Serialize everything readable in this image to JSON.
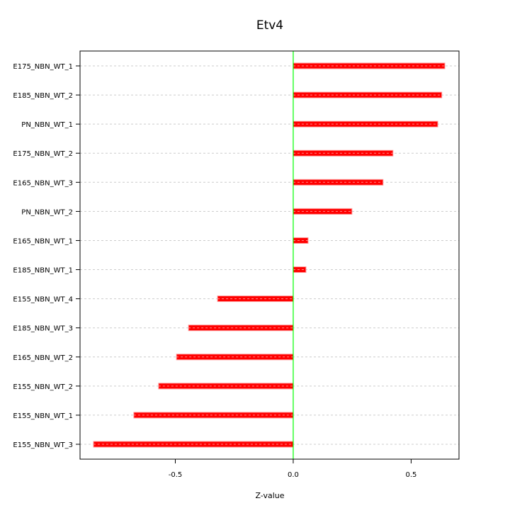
{
  "chart_data": {
    "type": "bar",
    "orientation": "horizontal",
    "title": "Etv4",
    "xlabel": "Z-value",
    "ylabel": "",
    "xlim": [
      -0.904,
      0.703
    ],
    "xticks": [
      -0.5,
      0.0,
      0.5
    ],
    "xtick_labels": [
      "-0.5",
      "0.0",
      "0.5"
    ],
    "grid": "horizontal dashed",
    "reference_line": 0,
    "colors": {
      "bar": "#ff0000",
      "zero_line": "#00ff00",
      "grid": "#cccccc"
    },
    "categories": [
      "E175_NBN_WT_1",
      "E185_NBN_WT_2",
      "PN_NBN_WT_1",
      "E175_NBN_WT_2",
      "E165_NBN_WT_3",
      "PN_NBN_WT_2",
      "E165_NBN_WT_1",
      "E185_NBN_WT_1",
      "E155_NBN_WT_4",
      "E185_NBN_WT_3",
      "E165_NBN_WT_2",
      "E155_NBN_WT_2",
      "E155_NBN_WT_1",
      "E155_NBN_WT_3"
    ],
    "values": [
      0.643,
      0.63,
      0.613,
      0.423,
      0.381,
      0.249,
      0.063,
      0.054,
      -0.321,
      -0.444,
      -0.495,
      -0.571,
      -0.676,
      -0.847
    ]
  }
}
